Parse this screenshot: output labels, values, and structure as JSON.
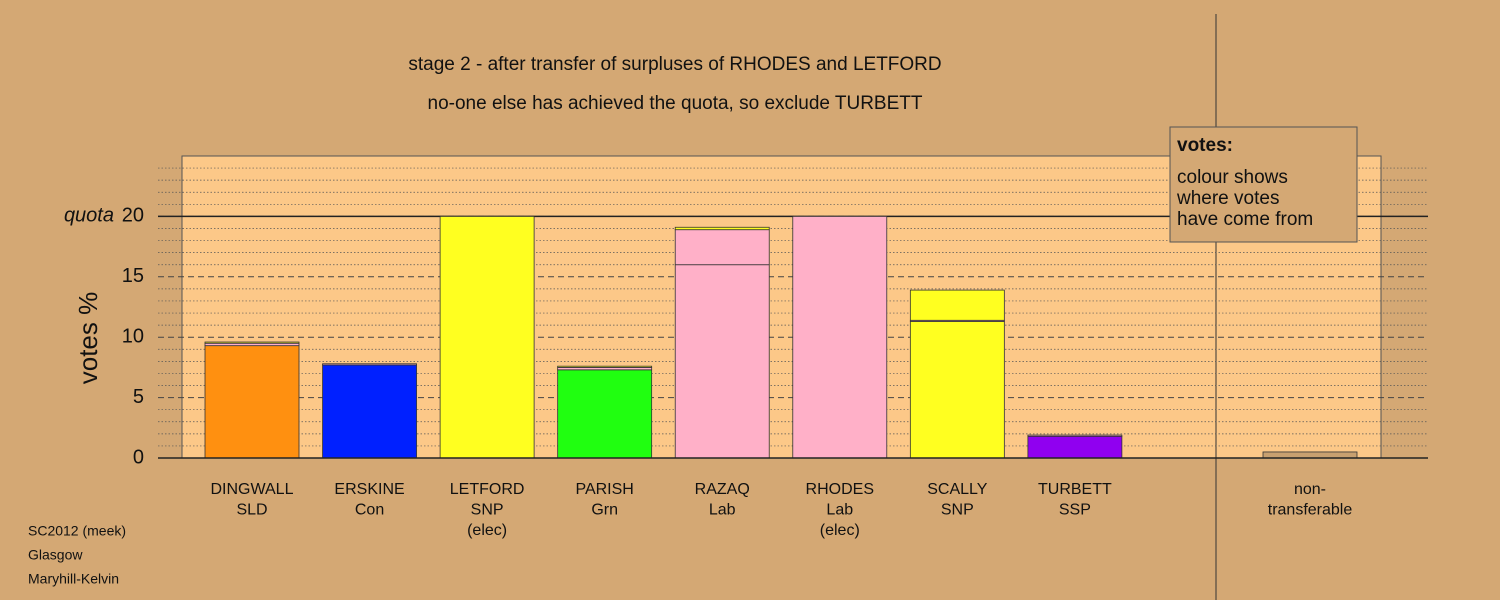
{
  "chart_data": {
    "type": "stacked-bar",
    "title": "stage 2 - after transfer of surpluses of RHODES and LETFORD",
    "subtitle": "no-one else has achieved the quota, so exclude TURBETT",
    "ylabel": "votes %",
    "categories": [
      [
        "DINGWALL",
        "SLD"
      ],
      [
        "ERSKINE",
        "Con"
      ],
      [
        "LETFORD",
        "SNP",
        "(elec)"
      ],
      [
        "PARISH",
        "Grn"
      ],
      [
        "RAZAQ",
        "Lab"
      ],
      [
        "RHODES",
        "Lab",
        "(elec)"
      ],
      [
        "SCALLY",
        "SNP"
      ],
      [
        "TURBETT",
        "SSP"
      ],
      null,
      [
        "non-",
        "transferable"
      ]
    ],
    "series": [
      {
        "colors": [
          "#ff9010",
          "#0020ff",
          "#ffff20",
          "#20ff10",
          "#ffb0c8",
          "#ffb0c8",
          "#ffff20",
          "#9000f0",
          null,
          "#c8a070"
        ],
        "values": [
          9.3,
          7.7,
          20,
          7.3,
          16.0,
          20,
          11.3,
          1.8,
          null,
          0.5
        ]
      },
      {
        "color": "#ffb0c8",
        "values": [
          0.2,
          0.1,
          0,
          0.2,
          2.9,
          0,
          0.1,
          0.1,
          null,
          null
        ]
      },
      {
        "color": "#ffff20",
        "values": [
          0.1,
          0,
          0,
          0.1,
          0.2,
          0,
          2.5,
          0,
          null,
          null
        ]
      }
    ],
    "ylim": [
      0,
      25
    ],
    "yticks": [
      0,
      5,
      10,
      15,
      20
    ],
    "minor_yticks": [
      1,
      2,
      3,
      4,
      6,
      7,
      8,
      9,
      11,
      12,
      13,
      14,
      16,
      17,
      18,
      19,
      21,
      22,
      23,
      24
    ],
    "reference_line": {
      "value": 20,
      "label": "quota"
    },
    "legend_box": {
      "title": "votes:",
      "lines": [
        "colour shows",
        "where votes",
        "have come from"
      ]
    },
    "footer": [
      "SC2012 (meek)",
      "Glasgow",
      "Maryhill-Kelvin"
    ]
  }
}
